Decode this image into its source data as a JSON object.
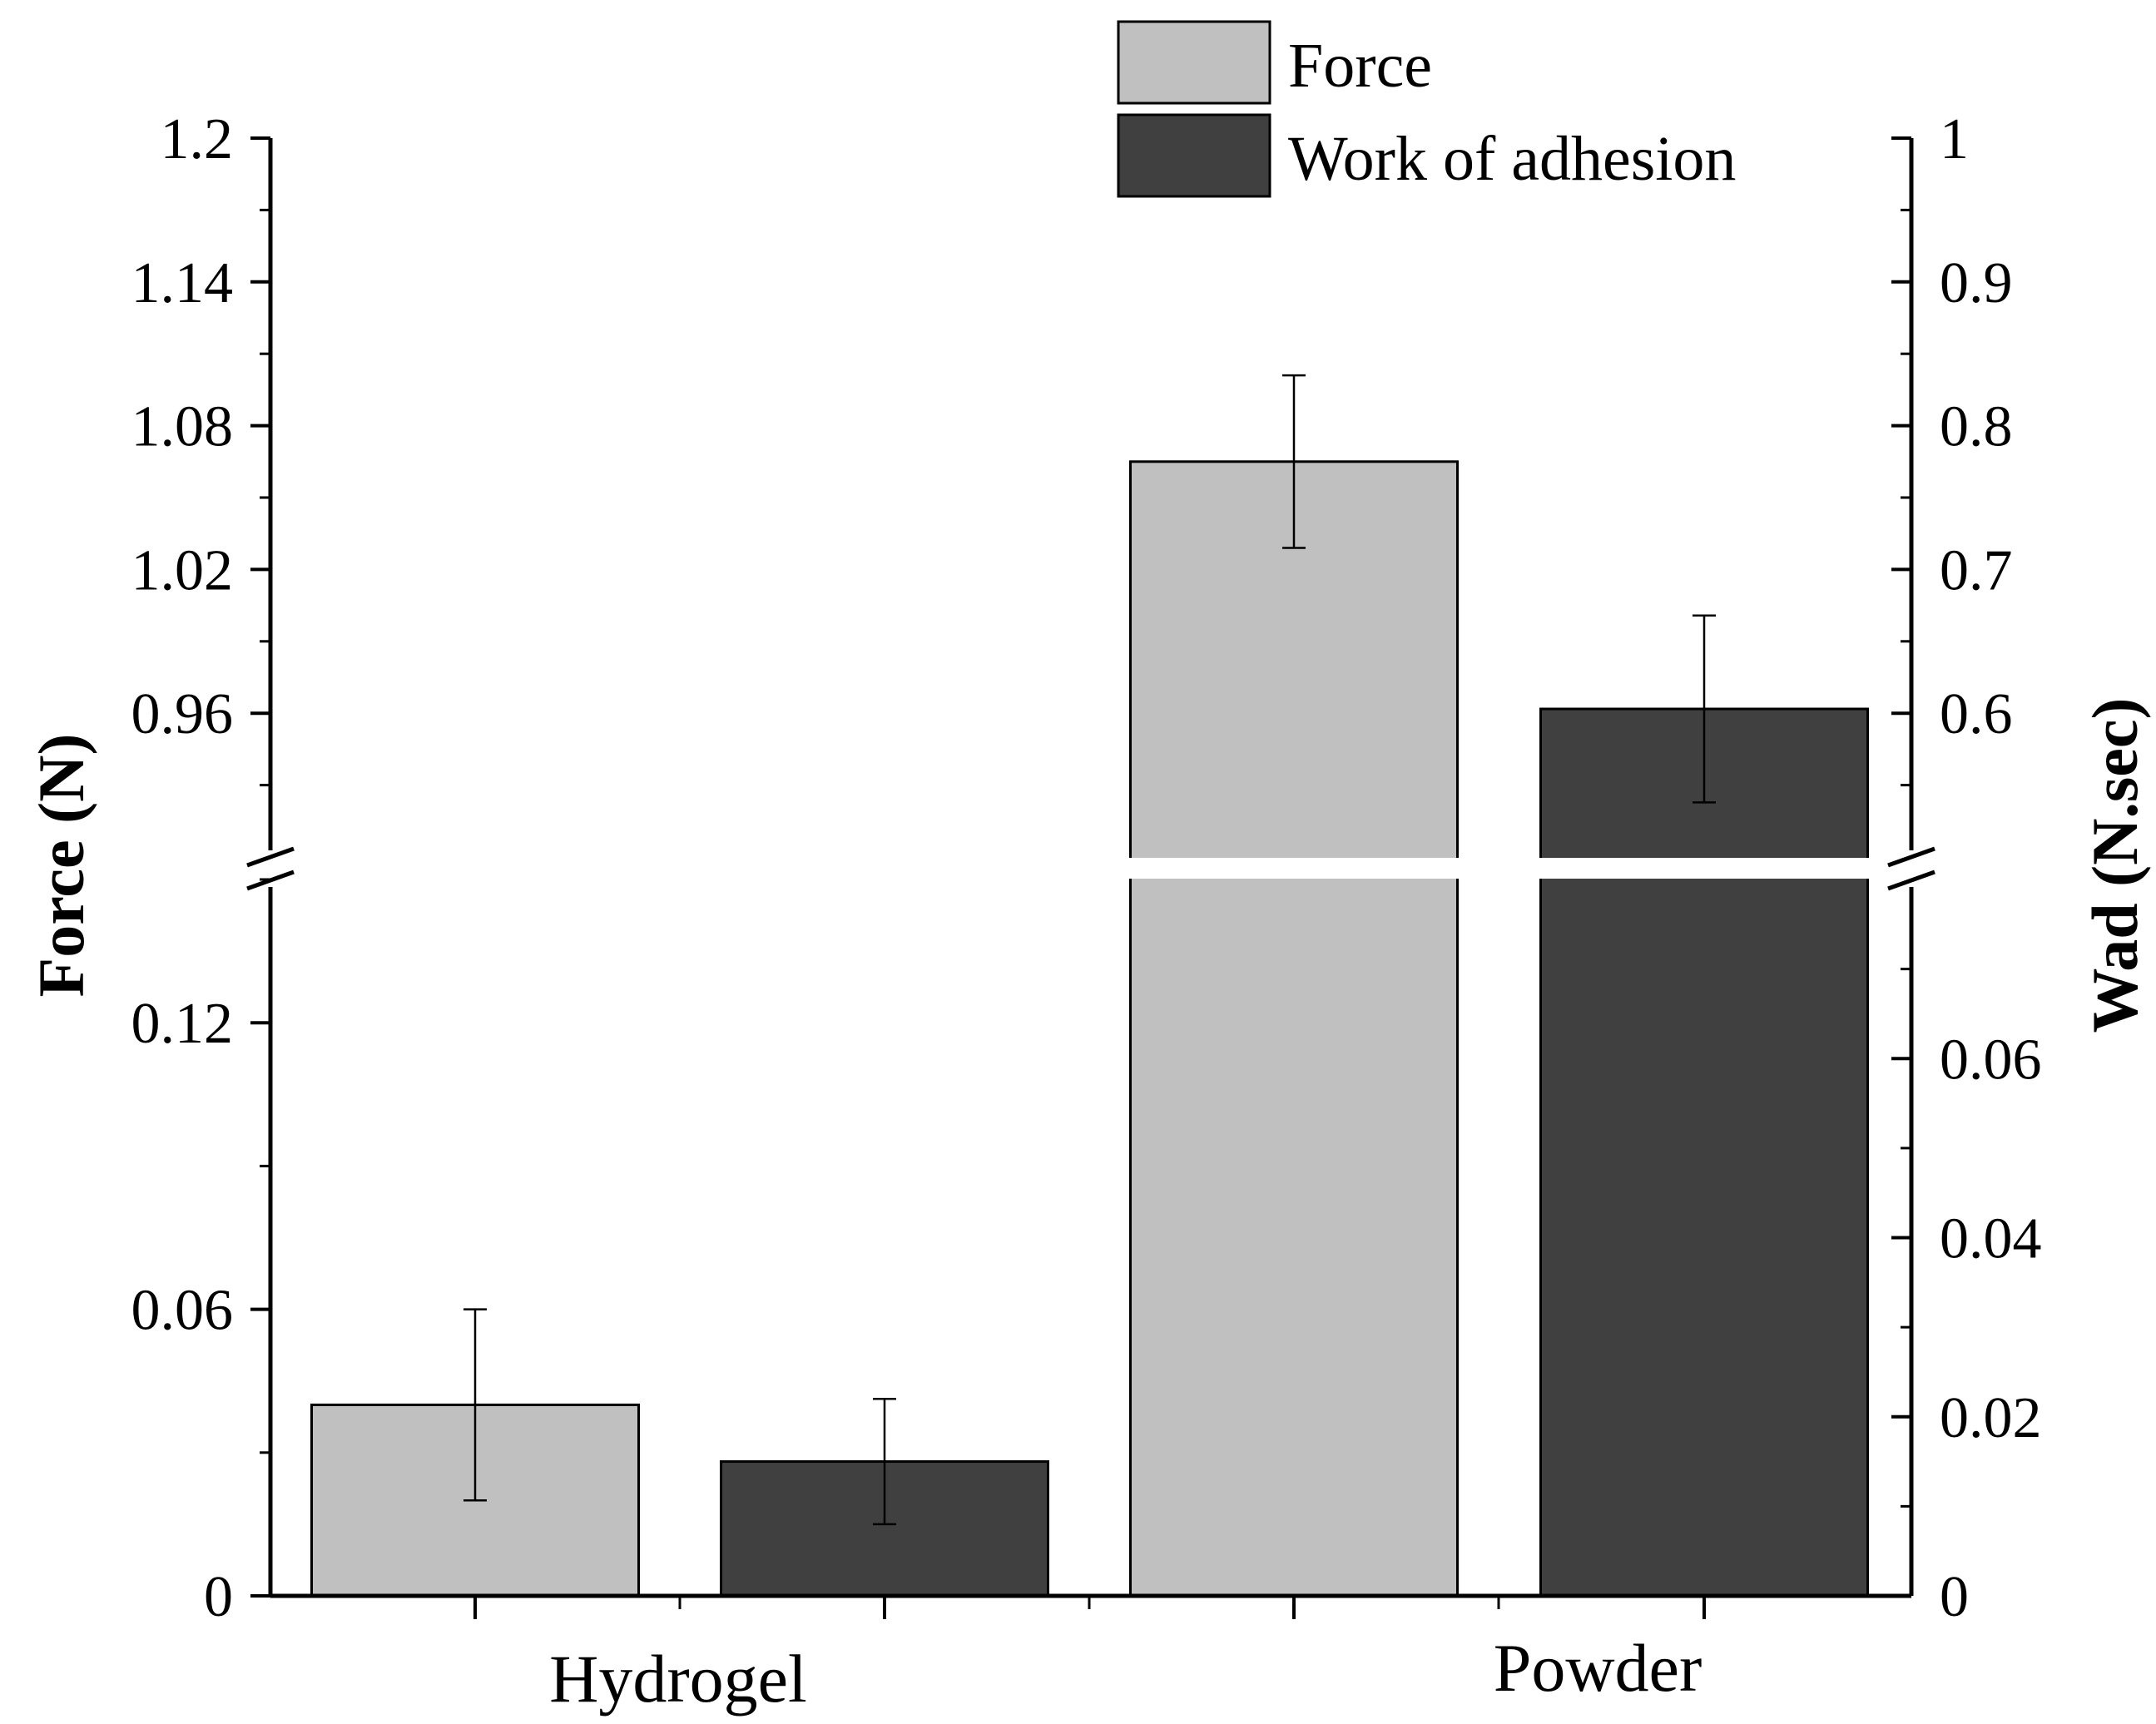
{
  "chart_data": {
    "type": "bar",
    "categories": [
      "Hydrogel",
      "Powder"
    ],
    "series": [
      {
        "name": "Force",
        "axis": "left",
        "color": "#c0c0c0",
        "values": [
          0.04,
          1.065
        ],
        "error_low": [
          0.02,
          1.029
        ],
        "error_high": [
          0.06,
          1.101
        ]
      },
      {
        "name": "Work of adhesion",
        "axis": "right",
        "color": "#404040",
        "values": [
          0.015,
          0.603
        ],
        "error_low": [
          0.008,
          0.538
        ],
        "error_high": [
          0.022,
          0.668
        ]
      }
    ],
    "left_axis": {
      "label": "Force (N)",
      "lower_range": [
        0,
        0.15
      ],
      "upper_range": [
        0.9,
        1.2
      ],
      "lower_ticks": [
        "0",
        "0.06",
        "0.12"
      ],
      "upper_ticks": [
        "0.96",
        "1.02",
        "1.08",
        "1.14",
        "1.2"
      ]
    },
    "right_axis": {
      "label": "Wad (N.sec)",
      "lower_range": [
        0,
        0.08
      ],
      "upper_range": [
        0.5,
        1.0
      ],
      "lower_ticks": [
        "0",
        "0.02",
        "0.04",
        "0.06"
      ],
      "upper_ticks": [
        "0.6",
        "0.7",
        "0.8",
        "0.9",
        "1"
      ]
    },
    "axis_break": true,
    "legend": {
      "position": "top-center",
      "entries": [
        "Force",
        "Work of adhesion"
      ]
    },
    "grid": false
  }
}
